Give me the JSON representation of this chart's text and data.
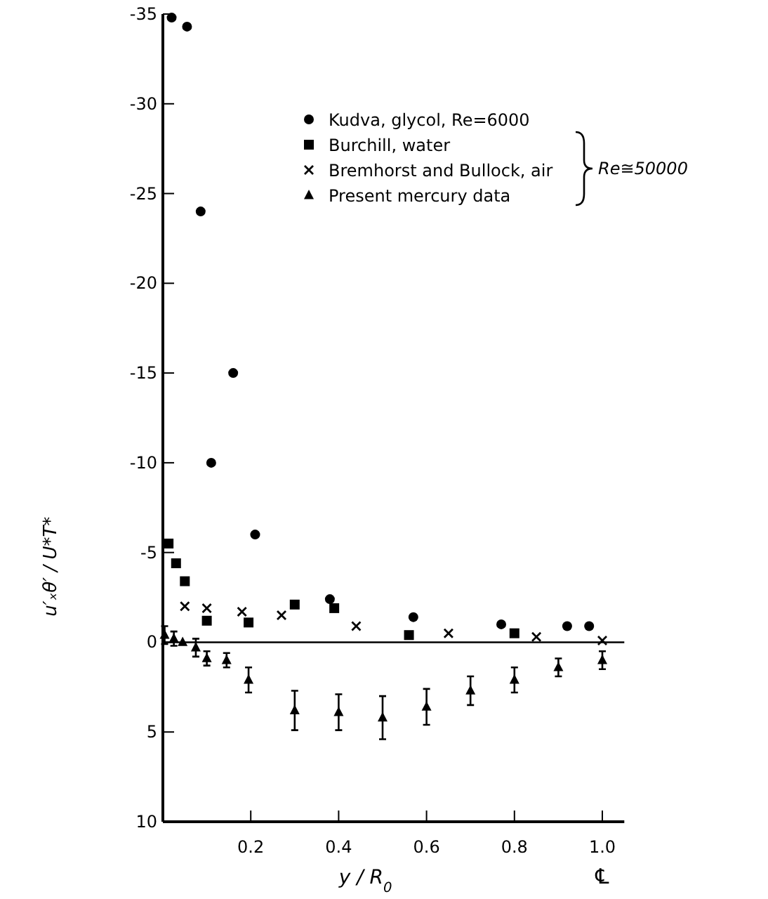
{
  "chart_data": {
    "type": "scatter",
    "xlabel": "y / R$_{0}$",
    "ylabel": "u′ₓθ′ / U*T*",
    "xlim": [
      0,
      1.05
    ],
    "ylim": [
      10,
      -35
    ],
    "xticks": [
      0.2,
      0.4,
      0.6,
      0.8,
      {
        "value": 1,
        "label": "1.0"
      }
    ],
    "yticks": [
      -35,
      -30,
      -25,
      -20,
      -15,
      -10,
      -5,
      0,
      5,
      10
    ],
    "legend": "top right",
    "grid": false,
    "ref_lines": [
      {
        "axis": "y",
        "value": 0
      }
    ],
    "annotations": [
      "Re≅50000",
      "℄"
    ],
    "series": [
      {
        "name": "Kudva, glycol, Re=6000",
        "color": "#000000",
        "marker": "circle",
        "x": [
          0.02,
          0.055,
          0.086,
          0.11,
          0.16,
          0.21,
          0.38,
          0.57,
          0.77,
          0.92,
          0.97
        ],
        "values": [
          -34.8,
          -34.3,
          -24,
          -10,
          -15,
          -6,
          -2.4,
          -1.4,
          -1,
          -0.9,
          -0.9
        ]
      },
      {
        "name": "Burchill, water",
        "color": "#000000",
        "marker": "square",
        "x": [
          0.013,
          0.03,
          0.05,
          0.1,
          0.195,
          0.3,
          0.39,
          0.56,
          0.8
        ],
        "values": [
          -5.5,
          -4.4,
          -3.4,
          -1.2,
          -1.1,
          -2.1,
          -1.9,
          -0.4,
          -0.5
        ]
      },
      {
        "name": "Bremhorst and Bullock, air",
        "color": "#000000",
        "marker": "cross",
        "x": [
          0.05,
          0.1,
          0.18,
          0.27,
          0.44,
          0.65,
          0.85,
          1.0
        ],
        "values": [
          -2,
          -1.9,
          -1.7,
          -1.5,
          -0.9,
          -0.5,
          -0.3,
          -0.1
        ]
      },
      {
        "name": "Present mercury data",
        "color": "#000000",
        "marker": "triangle",
        "x": [
          0.004,
          0.025,
          0.045,
          0.075,
          0.1,
          0.145,
          0.195,
          0.3,
          0.4,
          0.5,
          0.6,
          0.7,
          0.8,
          0.9,
          1.0
        ],
        "values": [
          -0.4,
          -0.2,
          0,
          0.3,
          0.9,
          1,
          2.1,
          3.8,
          3.9,
          4.2,
          3.6,
          2.7,
          2.1,
          1.4,
          1
        ],
        "errors": [
          0.5,
          0.4,
          null,
          0.5,
          0.4,
          0.4,
          0.7,
          1.1,
          1,
          1.2,
          1,
          0.8,
          0.7,
          0.5,
          0.5
        ]
      }
    ]
  }
}
